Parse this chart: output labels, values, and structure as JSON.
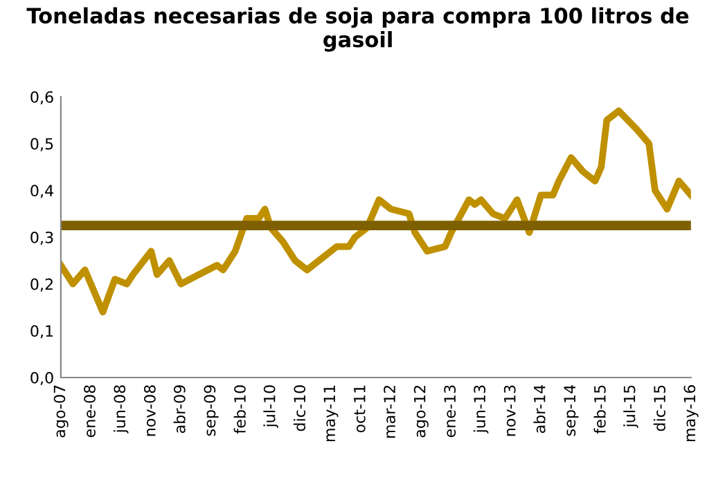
{
  "chart_data": {
    "type": "line",
    "title": "Toneladas necesarias de soja para compra 100 litros de gasoil",
    "x": [
      "2007-08",
      "2007-10",
      "2007-12",
      "2008-03",
      "2008-05",
      "2008-07",
      "2008-08",
      "2008-11",
      "2008-12",
      "2009-02",
      "2009-04",
      "2009-07",
      "2009-10",
      "2009-11",
      "2010-01",
      "2010-03",
      "2010-05",
      "2010-06",
      "2010-07",
      "2010-09",
      "2010-11",
      "2011-01",
      "2011-04",
      "2011-06",
      "2011-08",
      "2011-09",
      "2011-11",
      "2012-01",
      "2012-03",
      "2012-06",
      "2012-07",
      "2012-09",
      "2012-12",
      "2013-01",
      "2013-04",
      "2013-05",
      "2013-06",
      "2013-08",
      "2013-10",
      "2013-11",
      "2013-12",
      "2014-02",
      "2014-04",
      "2014-06",
      "2014-07",
      "2014-09",
      "2014-11",
      "2015-01",
      "2015-02",
      "2015-03",
      "2015-05",
      "2015-08",
      "2015-10",
      "2015-11",
      "2016-01",
      "2016-03",
      "2016-05"
    ],
    "series": [
      {
        "color": "#bf9000",
        "values": [
          0.24,
          0.2,
          0.23,
          0.14,
          0.21,
          0.2,
          0.22,
          0.27,
          0.22,
          0.25,
          0.2,
          0.22,
          0.24,
          0.23,
          0.27,
          0.34,
          0.34,
          0.36,
          0.32,
          0.29,
          0.25,
          0.23,
          0.26,
          0.28,
          0.28,
          0.3,
          0.32,
          0.38,
          0.36,
          0.35,
          0.31,
          0.27,
          0.28,
          0.31,
          0.38,
          0.37,
          0.38,
          0.35,
          0.34,
          0.36,
          0.38,
          0.31,
          0.39,
          0.39,
          0.42,
          0.47,
          0.44,
          0.42,
          0.45,
          0.55,
          0.57,
          0.53,
          0.5,
          0.4,
          0.36,
          0.42,
          0.39
        ]
      }
    ],
    "ref_lines": [
      {
        "axis": "y",
        "value": 0.325,
        "color": "#7f6000"
      }
    ],
    "xlim": [
      "2007-08",
      "2016-05"
    ],
    "xticks": [
      {
        "value": "2007-08",
        "label": "ago-07"
      },
      {
        "value": "2008-01",
        "label": "ene-08"
      },
      {
        "value": "2008-06",
        "label": "jun-08"
      },
      {
        "value": "2008-11",
        "label": "nov-08"
      },
      {
        "value": "2009-04",
        "label": "abr-09"
      },
      {
        "value": "2009-09",
        "label": "sep-09"
      },
      {
        "value": "2010-02",
        "label": "feb-10"
      },
      {
        "value": "2010-07",
        "label": "jul-10"
      },
      {
        "value": "2010-12",
        "label": "dic-10"
      },
      {
        "value": "2011-05",
        "label": "may-11"
      },
      {
        "value": "2011-10",
        "label": "oct-11"
      },
      {
        "value": "2012-03",
        "label": "mar-12"
      },
      {
        "value": "2012-08",
        "label": "ago-12"
      },
      {
        "value": "2013-01",
        "label": "ene-13"
      },
      {
        "value": "2013-06",
        "label": "jun-13"
      },
      {
        "value": "2013-11",
        "label": "nov-13"
      },
      {
        "value": "2014-04",
        "label": "abr-14"
      },
      {
        "value": "2014-09",
        "label": "sep-14"
      },
      {
        "value": "2015-02",
        "label": "feb-15"
      },
      {
        "value": "2015-07",
        "label": "jul-15"
      },
      {
        "value": "2015-12",
        "label": "dic-15"
      },
      {
        "value": "2016-05",
        "label": "may-16"
      }
    ],
    "ylim": [
      0,
      0.6
    ],
    "yticks": [
      {
        "value": 0,
        "label": "0,0"
      },
      {
        "value": 0.1,
        "label": "0,1"
      },
      {
        "value": 0.2,
        "label": "0,2"
      },
      {
        "value": 0.3,
        "label": "0,3"
      },
      {
        "value": 0.4,
        "label": "0,4"
      },
      {
        "value": 0.5,
        "label": "0,5"
      },
      {
        "value": 0.6,
        "label": "0,6"
      }
    ],
    "grid": false,
    "legend": false,
    "marker": "none",
    "line_style": "solid"
  }
}
